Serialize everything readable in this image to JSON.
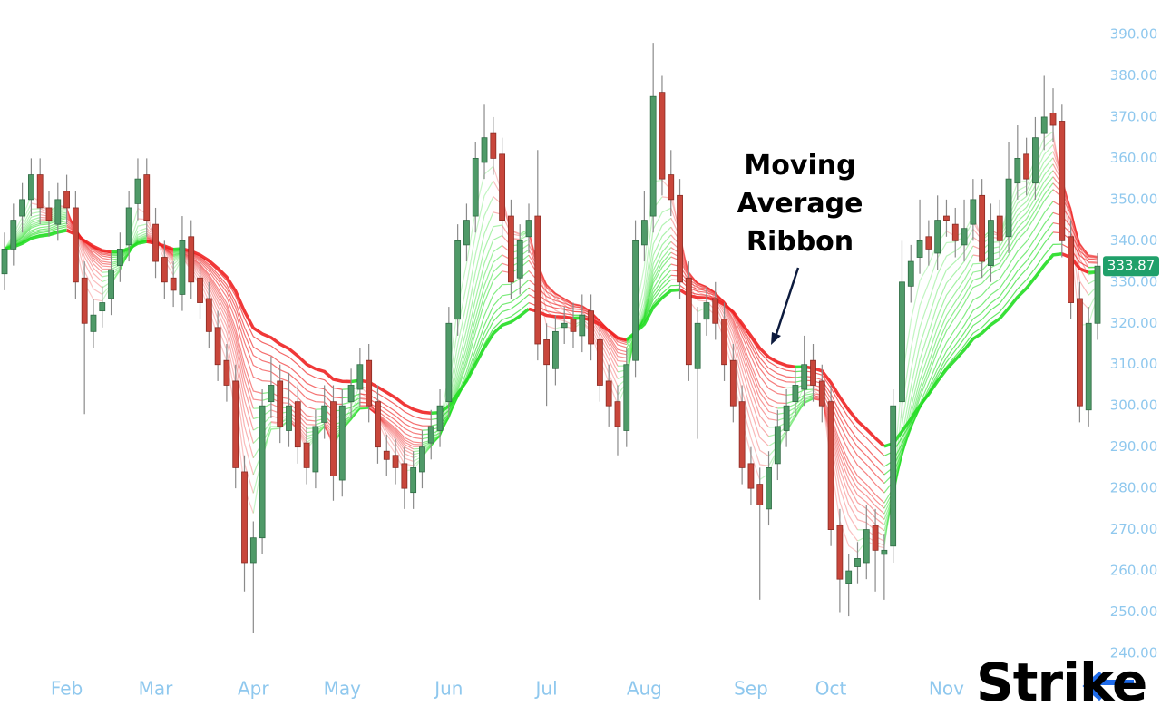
{
  "chart_data": {
    "type": "candlestick",
    "annotation": "Moving Average Ribbon",
    "logo": "Strike",
    "ylim": [
      240,
      390
    ],
    "yticks": [
      {
        "value": 240,
        "label": "240.00"
      },
      {
        "value": 250,
        "label": "250.00"
      },
      {
        "value": 260,
        "label": "260.00"
      },
      {
        "value": 270,
        "label": "270.00"
      },
      {
        "value": 280,
        "label": "280.00"
      },
      {
        "value": 290,
        "label": "290.00"
      },
      {
        "value": 300,
        "label": "300.00"
      },
      {
        "value": 310,
        "label": "310.00"
      },
      {
        "value": 320,
        "label": "320.00"
      },
      {
        "value": 330,
        "label": "330.00"
      },
      {
        "value": 340,
        "label": "340.00"
      },
      {
        "value": 350,
        "label": "350.00"
      },
      {
        "value": 360,
        "label": "360.00"
      },
      {
        "value": 370,
        "label": "370.00"
      },
      {
        "value": 380,
        "label": "380.00"
      },
      {
        "value": 390,
        "label": "390.00"
      }
    ],
    "xticks": [
      {
        "value": 7,
        "label": "Feb"
      },
      {
        "value": 17,
        "label": "Mar"
      },
      {
        "value": 28,
        "label": "Apr"
      },
      {
        "value": 38,
        "label": "May"
      },
      {
        "value": 50,
        "label": "Jun"
      },
      {
        "value": 61,
        "label": "Jul"
      },
      {
        "value": 72,
        "label": "Aug"
      },
      {
        "value": 84,
        "label": "Sep"
      },
      {
        "value": 93,
        "label": "Oct"
      },
      {
        "value": 106,
        "label": "Nov"
      }
    ],
    "up_color": "#4f9a68",
    "down_color": "#c8463b",
    "ribbon_up_color": "#22dd22",
    "ribbon_down_color": "#ee2222",
    "open": [
      332,
      338,
      346,
      350,
      356,
      348,
      344,
      352,
      348,
      331,
      318,
      323,
      326,
      334,
      339,
      349,
      356,
      344,
      336,
      331,
      327,
      341,
      331,
      326,
      319,
      311,
      306,
      284,
      262,
      268,
      301,
      306,
      294,
      301,
      291,
      284,
      296,
      301,
      282,
      301,
      304,
      311,
      301,
      289,
      288,
      286,
      279,
      284,
      291,
      294,
      301,
      321,
      339,
      346,
      359,
      366,
      361,
      346,
      331,
      341,
      346,
      316,
      309,
      319,
      321,
      317,
      323,
      316,
      306,
      301,
      294,
      311,
      339,
      346,
      376,
      356,
      351,
      331,
      309,
      321,
      326,
      321,
      311,
      301,
      286,
      281,
      275,
      286,
      294,
      301,
      304,
      311,
      306,
      301,
      271,
      257,
      261,
      262,
      271,
      264,
      266,
      301,
      329,
      336,
      341,
      337,
      346,
      344,
      339,
      344,
      351,
      334,
      346,
      341,
      354,
      361,
      354,
      366,
      371,
      369,
      341,
      326,
      299,
      320
    ],
    "high": [
      342,
      349,
      354,
      360,
      360,
      352,
      354,
      356,
      352,
      335,
      326,
      329,
      337,
      342,
      352,
      360,
      360,
      348,
      340,
      335,
      346,
      345,
      335,
      330,
      323,
      315,
      310,
      288,
      272,
      304,
      312,
      310,
      308,
      305,
      295,
      299,
      305,
      305,
      304,
      309,
      314,
      315,
      305,
      293,
      292,
      290,
      289,
      294,
      299,
      304,
      324,
      344,
      349,
      364,
      373,
      370,
      365,
      350,
      344,
      349,
      362,
      320,
      322,
      324,
      325,
      327,
      327,
      320,
      310,
      305,
      314,
      345,
      352,
      388,
      380,
      362,
      355,
      335,
      324,
      329,
      330,
      325,
      315,
      305,
      290,
      285,
      289,
      299,
      304,
      309,
      317,
      315,
      310,
      305,
      275,
      264,
      267,
      276,
      275,
      269,
      304,
      340,
      339,
      350,
      345,
      351,
      350,
      348,
      350,
      355,
      355,
      349,
      350,
      364,
      368,
      365,
      370,
      380,
      377,
      373,
      345,
      330,
      324,
      337
    ],
    "low": [
      328,
      334,
      342,
      346,
      344,
      341,
      340,
      344,
      326,
      298,
      314,
      319,
      322,
      330,
      335,
      345,
      341,
      331,
      326,
      324,
      323,
      326,
      321,
      314,
      306,
      301,
      280,
      255,
      245,
      264,
      297,
      291,
      290,
      286,
      281,
      280,
      292,
      277,
      278,
      297,
      300,
      296,
      286,
      283,
      281,
      275,
      275,
      280,
      287,
      290,
      297,
      317,
      335,
      342,
      355,
      356,
      341,
      326,
      327,
      337,
      311,
      300,
      305,
      315,
      314,
      313,
      311,
      301,
      295,
      288,
      290,
      307,
      335,
      342,
      351,
      346,
      326,
      306,
      292,
      317,
      316,
      306,
      296,
      281,
      276,
      253,
      271,
      282,
      290,
      297,
      300,
      301,
      296,
      266,
      250,
      249,
      257,
      258,
      255,
      253,
      262,
      297,
      325,
      332,
      334,
      333,
      341,
      336,
      335,
      340,
      331,
      330,
      336,
      337,
      350,
      351,
      350,
      362,
      364,
      336,
      321,
      296,
      295,
      316
    ],
    "close": [
      338,
      345,
      350,
      356,
      348,
      345,
      350,
      348,
      330,
      320,
      322,
      325,
      333,
      338,
      348,
      355,
      345,
      335,
      330,
      328,
      340,
      330,
      325,
      318,
      310,
      305,
      285,
      262,
      268,
      300,
      305,
      295,
      300,
      290,
      285,
      295,
      300,
      283,
      300,
      305,
      310,
      300,
      290,
      287,
      285,
      280,
      285,
      290,
      295,
      300,
      320,
      340,
      345,
      360,
      365,
      360,
      345,
      330,
      340,
      345,
      315,
      310,
      318,
      320,
      318,
      322,
      315,
      305,
      300,
      295,
      310,
      340,
      345,
      375,
      355,
      350,
      330,
      310,
      320,
      325,
      320,
      310,
      300,
      285,
      280,
      276,
      285,
      295,
      300,
      305,
      310,
      305,
      300,
      270,
      258,
      260,
      263,
      270,
      265,
      265,
      300,
      330,
      335,
      340,
      338,
      345,
      345,
      340,
      343,
      350,
      335,
      345,
      340,
      355,
      360,
      355,
      365,
      370,
      368,
      340,
      325,
      300,
      320,
      333.87
    ]
  }
}
